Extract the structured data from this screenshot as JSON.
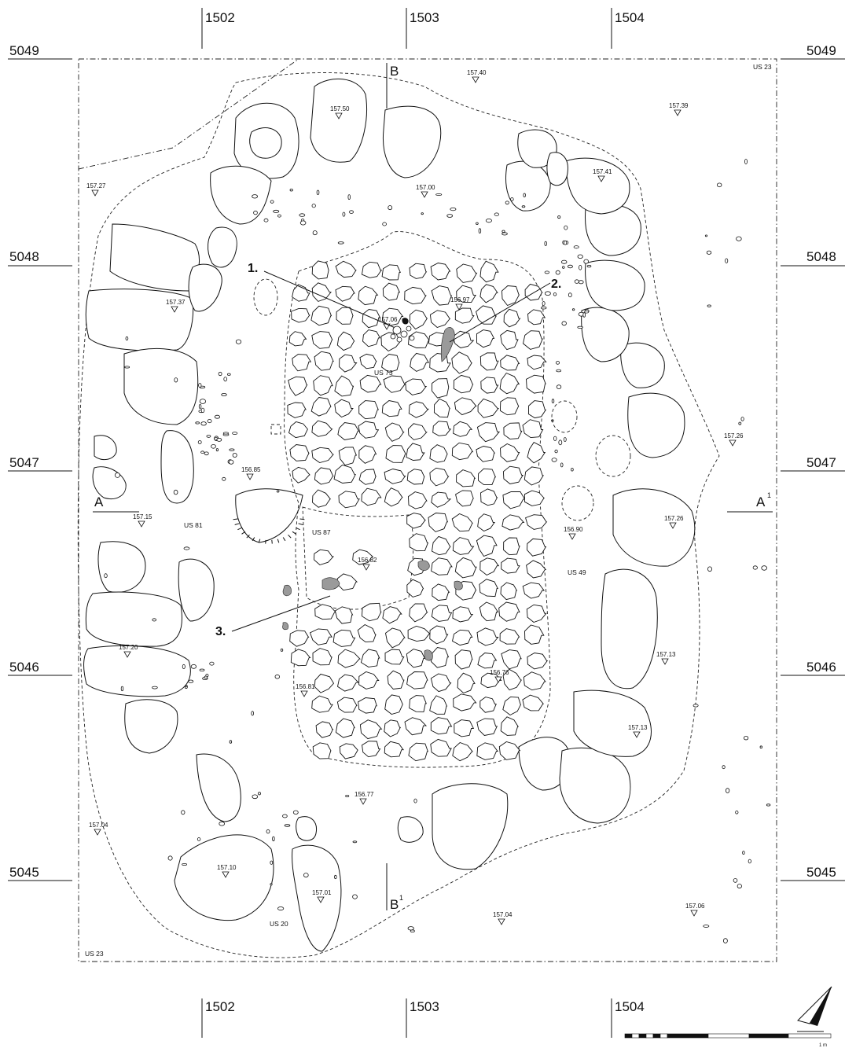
{
  "grid": {
    "easting": [
      "1502",
      "1503",
      "1504"
    ],
    "northing": [
      "5049",
      "5048",
      "5047",
      "5046",
      "5045"
    ]
  },
  "sections": {
    "a_left": "A",
    "a_right": "A",
    "a_right_sup": "1",
    "b_top": "B",
    "b_bottom": "B",
    "b_bottom_sup": "1"
  },
  "units": {
    "us23_top": "US 23",
    "us23_bottom": "US 23",
    "us73": "US 73",
    "us81": "US 81",
    "us87": "US 87",
    "us49": "US 49",
    "us20": "US 20"
  },
  "elevations": [
    "157.40",
    "157.50",
    "157.39",
    "157.27",
    "157.00",
    "157.41",
    "157.37",
    "156.97",
    "157.06",
    "157.26",
    "156.85",
    "157.15",
    "157.26",
    "156.90",
    "156.82",
    "157.20",
    "157.13",
    "156.76",
    "156.81",
    "157.13",
    "156.77",
    "157.04",
    "157.10",
    "157.01",
    "157.04",
    "157.06"
  ],
  "annotations": [
    "1.",
    "2.",
    "3."
  ],
  "scale": {
    "label": "1 m"
  }
}
